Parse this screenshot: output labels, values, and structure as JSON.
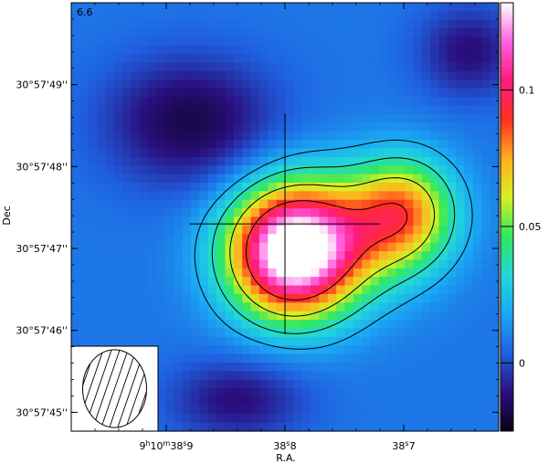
{
  "chart_data": {
    "type": "heatmap",
    "panel_label": "6.6",
    "xlabel": "R.A.",
    "ylabel": "Dec",
    "x_ticks": [
      {
        "label": "9h10m38.9s",
        "prefix": "9",
        "h": "h",
        "mid": "10",
        "m": "m",
        "sec_int": "38",
        "s": "s",
        "sec_frac": "9"
      },
      {
        "label": "38.8s",
        "sec_int": "38",
        "s": "s",
        "sec_frac": "8"
      },
      {
        "label": "38.7s",
        "sec_int": "38",
        "s": "s",
        "sec_frac": "7"
      }
    ],
    "y_ticks": [
      "30°57'49''",
      "30°57'48''",
      "30°57'47''",
      "30°57'46''",
      "30°57'45''"
    ],
    "colorbar": {
      "ticks": [
        "0.1",
        "0.05",
        "0"
      ],
      "tick_values": [
        0.1,
        0.05,
        0
      ],
      "range": [
        -0.025,
        0.132
      ],
      "colors": [
        "#0a0014",
        "#2a1080",
        "#1f60e0",
        "#1aa8f5",
        "#22d8d8",
        "#30e860",
        "#d8f020",
        "#ffb020",
        "#ff3020",
        "#ff1a80",
        "#ff60e0",
        "#ffffff"
      ]
    },
    "sources": [
      {
        "ra_s": 38.795,
        "dec_s": 46.95,
        "peak": 0.13,
        "sigma_ra": 0.037,
        "sigma_dec": 0.55
      },
      {
        "ra_s": 38.7,
        "dec_s": 47.45,
        "peak": 0.062,
        "sigma_ra": 0.03,
        "sigma_dec": 0.45
      },
      {
        "ra_s": 38.745,
        "dec_s": 47.15,
        "peak": 0.035,
        "sigma_ra": 0.045,
        "sigma_dec": 0.55
      },
      {
        "ra_s": 38.88,
        "dec_s": 48.55,
        "peak": -0.026,
        "sigma_ra": 0.05,
        "sigma_dec": 0.55
      },
      {
        "ra_s": 38.84,
        "dec_s": 45.15,
        "peak": -0.02,
        "sigma_ra": 0.04,
        "sigma_dec": 0.35
      },
      {
        "ra_s": 38.645,
        "dec_s": 49.4,
        "peak": -0.02,
        "sigma_ra": 0.03,
        "sigma_dec": 0.4
      }
    ],
    "background_level": 0.008,
    "contour_levels_positive": [
      0.02,
      0.035,
      0.06,
      0.09
    ],
    "contour_levels_negative": [
      -0.018
    ],
    "cross": {
      "ra_s": 38.8,
      "dec_s": 47.3,
      "half_ra": 0.08,
      "half_dec": 1.35
    },
    "beam": {
      "major_arcsec": 0.95,
      "minor_arcsec": 0.78,
      "pa_deg": 0,
      "hatched": true
    },
    "x_range_s": [
      38.98,
      38.62
    ],
    "y_range_arcsec": [
      44.77,
      50.0
    ]
  }
}
